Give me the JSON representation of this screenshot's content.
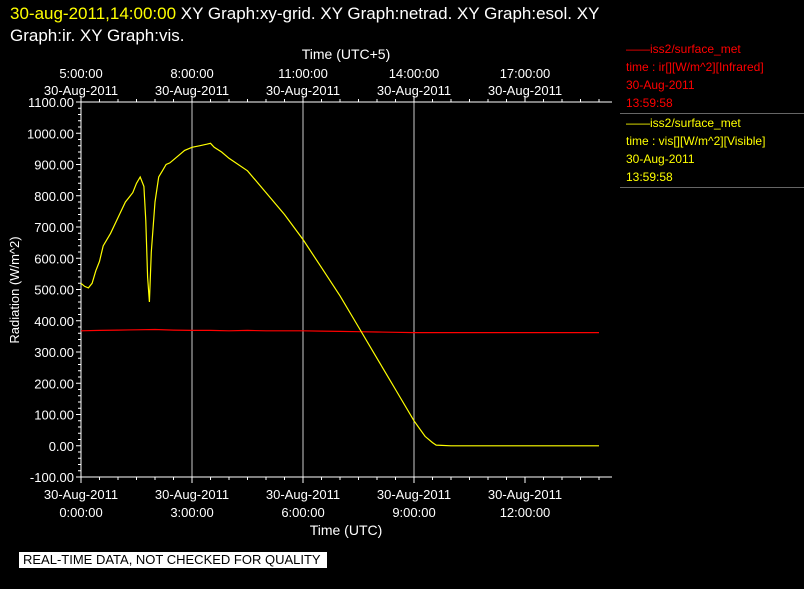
{
  "header": {
    "timestamp": "30-aug-2011,14:00:00",
    "graph_list": "XY Graph:xy-grid.  XY Graph:netrad.  XY Graph:esol.  XY Graph:ir.  XY Graph:vis."
  },
  "legend": {
    "ir": {
      "line1": "iss2/surface_met",
      "line2": "time : ir[][W/m^2][Infrared]",
      "line3": "30-Aug-2011",
      "line4": "13:59:58",
      "color": "#ff0000"
    },
    "vis": {
      "line1": "iss2/surface_met",
      "line2": "time : vis[][W/m^2][Visible]",
      "line3": "30-Aug-2011",
      "line4": "13:59:58",
      "color": "#ffff00"
    }
  },
  "disclaimer": "REAL-TIME DATA, NOT CHECKED FOR QUALITY",
  "chart_data": {
    "type": "line",
    "title": "",
    "xlabel": "Time (UTC)",
    "x2label": "Time (UTC+5)",
    "ylabel": "Radiation (W/m^2)",
    "ylim": [
      -100,
      1100
    ],
    "xlim": [
      0,
      14
    ],
    "x_unit": "hours UTC since 30-Aug-2011 00:00",
    "grid": true,
    "yticks": [
      {
        "value": 1100,
        "label": "1100.00"
      },
      {
        "value": 1000,
        "label": "1000.00"
      },
      {
        "value": 900,
        "label": "900.00"
      },
      {
        "value": 800,
        "label": "800.00"
      },
      {
        "value": 700,
        "label": "700.00"
      },
      {
        "value": 600,
        "label": "600.00"
      },
      {
        "value": 500,
        "label": "500.00"
      },
      {
        "value": 400,
        "label": "400.00"
      },
      {
        "value": 300,
        "label": "300.00"
      },
      {
        "value": 200,
        "label": "200.00"
      },
      {
        "value": 100,
        "label": "100.00"
      },
      {
        "value": 0,
        "label": "0.00"
      },
      {
        "value": -100,
        "label": "-100.00"
      }
    ],
    "xticks_bottom": [
      {
        "value": 0,
        "date": "30-Aug-2011",
        "time": "0:00:00"
      },
      {
        "value": 3,
        "date": "30-Aug-2011",
        "time": "3:00:00"
      },
      {
        "value": 6,
        "date": "30-Aug-2011",
        "time": "6:00:00"
      },
      {
        "value": 9,
        "date": "30-Aug-2011",
        "time": "9:00:00"
      },
      {
        "value": 12,
        "date": "30-Aug-2011",
        "time": "12:00:00"
      }
    ],
    "xticks_top": [
      {
        "value": 0,
        "time": "5:00:00",
        "date": "30-Aug-2011"
      },
      {
        "value": 3,
        "time": "8:00:00",
        "date": "30-Aug-2011"
      },
      {
        "value": 6,
        "time": "11:00:00",
        "date": "30-Aug-2011"
      },
      {
        "value": 9,
        "time": "14:00:00",
        "date": "30-Aug-2011"
      },
      {
        "value": 12,
        "time": "17:00:00",
        "date": "30-Aug-2011"
      }
    ],
    "vertical_gridlines": [
      3,
      6,
      9
    ],
    "series": [
      {
        "name": "ir",
        "color": "#ff0000",
        "x": [
          0,
          0.5,
          1,
          1.5,
          2,
          2.5,
          3,
          3.5,
          4,
          4.5,
          5,
          5.5,
          6,
          6.5,
          7,
          7.5,
          8,
          8.5,
          9,
          9.5,
          10,
          11,
          12,
          13,
          14
        ],
        "y": [
          368,
          369,
          370,
          371,
          372,
          370,
          369,
          369,
          368,
          369,
          368,
          368,
          368,
          367,
          366,
          365,
          364,
          363,
          362,
          362,
          362,
          362,
          362,
          362,
          362
        ]
      },
      {
        "name": "vis",
        "color": "#ffff00",
        "x": [
          0,
          0.1,
          0.2,
          0.3,
          0.4,
          0.5,
          0.6,
          0.8,
          1.0,
          1.2,
          1.4,
          1.5,
          1.6,
          1.7,
          1.75,
          1.8,
          1.85,
          1.9,
          2.0,
          2.1,
          2.2,
          2.3,
          2.4,
          2.5,
          2.6,
          2.7,
          2.8,
          3.0,
          3.2,
          3.4,
          3.5,
          3.6,
          3.8,
          4.0,
          4.5,
          5.0,
          5.5,
          6.0,
          6.5,
          7.0,
          7.5,
          8.0,
          8.5,
          9.0,
          9.3,
          9.5,
          9.6,
          10,
          11,
          12,
          13,
          14
        ],
        "y": [
          520,
          510,
          505,
          520,
          560,
          590,
          640,
          680,
          730,
          780,
          810,
          840,
          860,
          830,
          720,
          540,
          460,
          620,
          780,
          860,
          880,
          900,
          905,
          915,
          925,
          935,
          945,
          955,
          960,
          965,
          968,
          955,
          940,
          920,
          880,
          810,
          740,
          660,
          570,
          480,
          380,
          280,
          180,
          80,
          30,
          10,
          2,
          0,
          0,
          0,
          0,
          0
        ]
      }
    ]
  }
}
